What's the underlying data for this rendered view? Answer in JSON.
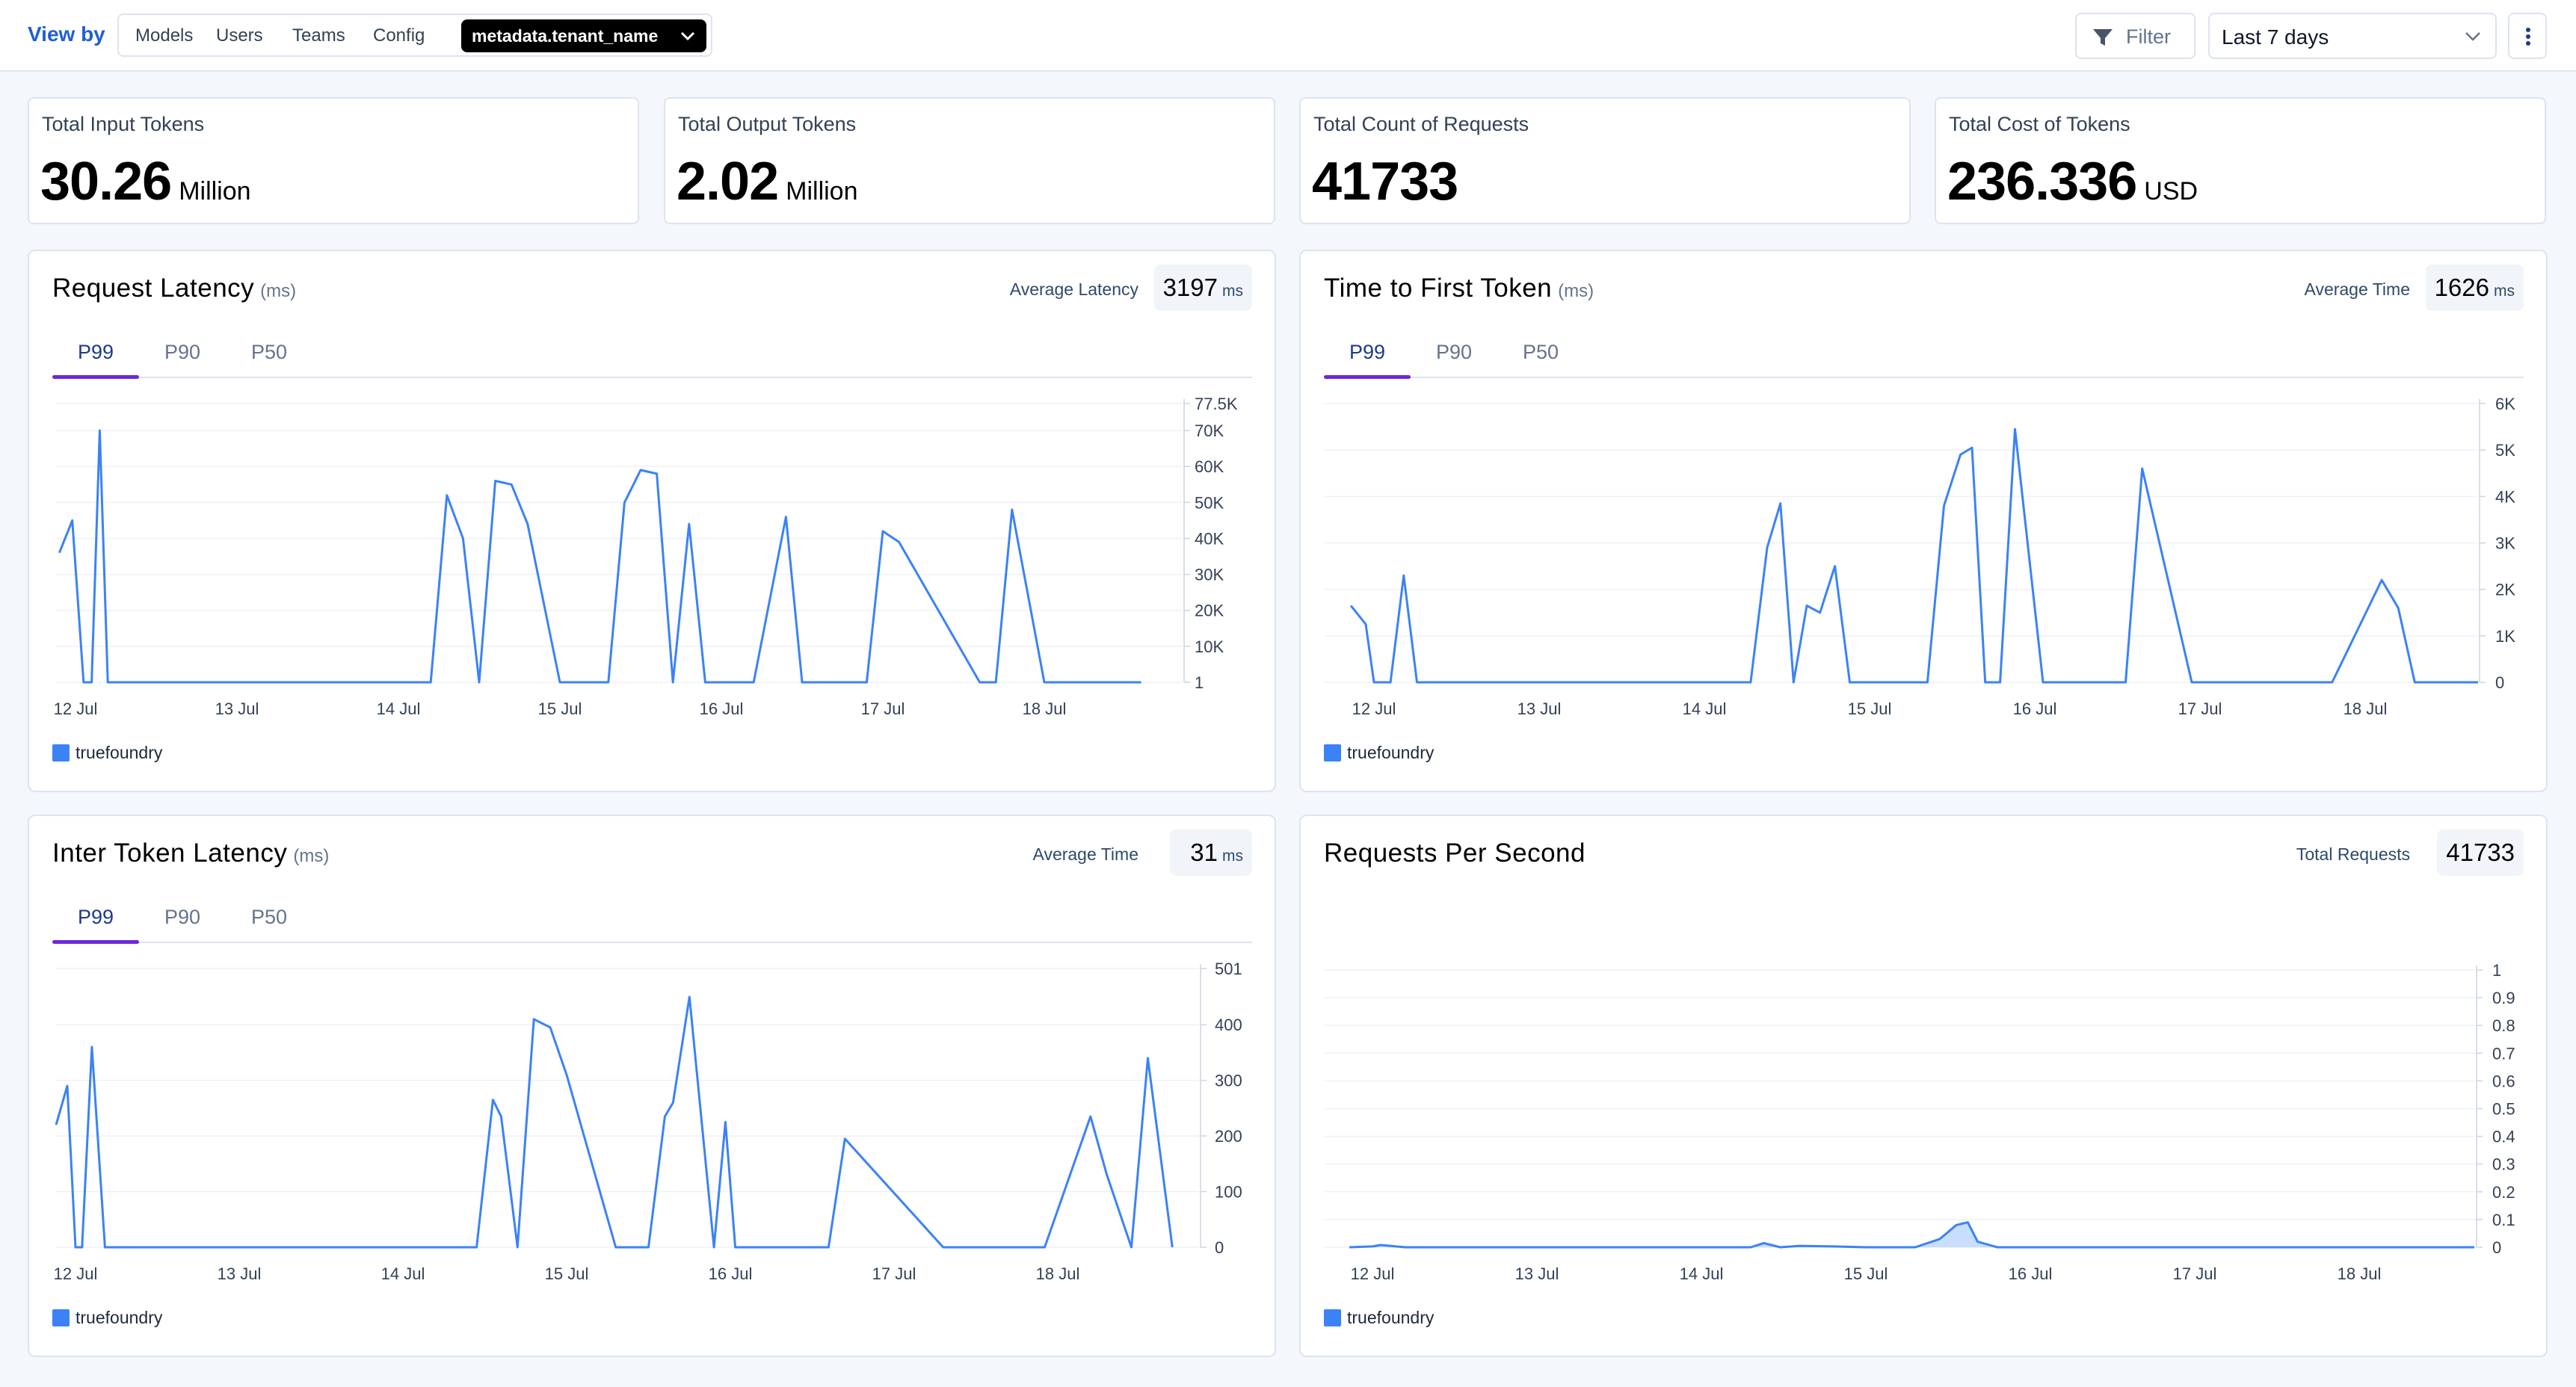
{
  "toolbar": {
    "view_by_label": "View by",
    "segments": [
      "Models",
      "Users",
      "Teams",
      "Config"
    ],
    "active_segment": "metadata.tenant_name",
    "filter_label": "Filter",
    "time_range": "Last 7 days"
  },
  "stats": [
    {
      "title": "Total Input Tokens",
      "value": "30.26",
      "unit": "Million"
    },
    {
      "title": "Total Output Tokens",
      "value": "2.02",
      "unit": "Million"
    },
    {
      "title": "Total Count of Requests",
      "value": "41733",
      "unit": ""
    },
    {
      "title": "Total Cost of Tokens",
      "value": "236.336",
      "unit": "USD"
    }
  ],
  "colors": {
    "series": "#3b82f6",
    "tab_underline": "#6d28d9",
    "accent_text": "#1d5fd6"
  },
  "panels": [
    {
      "title": "Request Latency",
      "unit": "(ms)",
      "summary_label": "Average Latency",
      "summary_value": "3197",
      "summary_unit": "ms",
      "tabs": [
        "P99",
        "P90",
        "P50"
      ],
      "active_tab": "P99",
      "legend": "truefoundry"
    },
    {
      "title": "Time to First Token",
      "unit": "(ms)",
      "summary_label": "Average Time",
      "summary_value": "1626",
      "summary_unit": "ms",
      "tabs": [
        "P99",
        "P90",
        "P50"
      ],
      "active_tab": "P99",
      "legend": "truefoundry"
    },
    {
      "title": "Inter Token Latency",
      "unit": "(ms)",
      "summary_label": "Average Time",
      "summary_value": "31",
      "summary_unit": "ms",
      "tabs": [
        "P99",
        "P90",
        "P50"
      ],
      "active_tab": "P99",
      "legend": "truefoundry"
    },
    {
      "title": "Requests Per Second",
      "unit": "",
      "summary_label": "Total Requests",
      "summary_value": "41733",
      "summary_unit": "",
      "tabs": [],
      "active_tab": "",
      "legend": "truefoundry"
    }
  ],
  "chart_data": [
    {
      "type": "line",
      "series_name": "truefoundry",
      "x_ticks": [
        "12 Jul",
        "13 Jul",
        "14 Jul",
        "15 Jul",
        "16 Jul",
        "17 Jul",
        "18 Jul"
      ],
      "y_ticks": [
        1,
        10000,
        20000,
        30000,
        40000,
        50000,
        60000,
        70000,
        77500
      ],
      "y_tick_labels": [
        "1",
        "10K",
        "20K",
        "30K",
        "40K",
        "50K",
        "60K",
        "70K",
        "77.5K"
      ],
      "ylim": [
        1,
        77500
      ],
      "x": [
        -0.1,
        -0.02,
        0.05,
        0.1,
        0.15,
        0.2,
        0.3,
        0.5,
        1,
        2,
        2.2,
        2.3,
        2.4,
        2.5,
        2.6,
        2.7,
        2.8,
        3,
        3.3,
        3.4,
        3.5,
        3.6,
        3.7,
        3.8,
        3.9,
        4,
        4.2,
        4.4,
        4.5,
        4.9,
        5,
        5.1,
        5.6,
        5.7,
        5.8,
        6,
        6.4,
        6.5,
        6.6
      ],
      "y": [
        36000,
        45000,
        1,
        1,
        70000,
        1,
        1,
        1,
        1,
        1,
        1,
        52000,
        40000,
        1,
        56000,
        55000,
        44000,
        1,
        1,
        50000,
        59000,
        58000,
        1,
        44000,
        1,
        1,
        1,
        46000,
        1,
        1,
        42000,
        39000,
        1,
        1,
        48000,
        1,
        1,
        1,
        1
      ]
    },
    {
      "type": "line",
      "series_name": "truefoundry",
      "x_ticks": [
        "12 Jul",
        "13 Jul",
        "14 Jul",
        "15 Jul",
        "16 Jul",
        "17 Jul",
        "18 Jul"
      ],
      "y_ticks": [
        0,
        1000,
        2000,
        3000,
        4000,
        5000,
        6000
      ],
      "y_tick_labels": [
        "0",
        "1K",
        "2K",
        "3K",
        "4K",
        "5K",
        "6K"
      ],
      "ylim": [
        0,
        6000
      ],
      "x": [
        -0.14,
        -0.05,
        0,
        0.1,
        0.18,
        0.26,
        2.28,
        2.38,
        2.46,
        2.54,
        2.62,
        2.7,
        2.79,
        2.88,
        3.35,
        3.45,
        3.55,
        3.62,
        3.7,
        3.79,
        3.88,
        4.05,
        4.1,
        4.2,
        4.45,
        4.55,
        4.65,
        4.95,
        5.05,
        5.1,
        5.55,
        5.65,
        5.8,
        6.1,
        6.2,
        6.3,
        6.45,
        6.55,
        6.7
      ],
      "y": [
        1650,
        1250,
        0,
        0,
        2300,
        0,
        0,
        2900,
        3850,
        0,
        1650,
        1500,
        2500,
        0,
        0,
        3800,
        4900,
        5050,
        0,
        0,
        5450,
        0,
        0,
        0,
        0,
        0,
        4600,
        0,
        0,
        0,
        0,
        0,
        0,
        2200,
        1600,
        0,
        0,
        0,
        0
      ]
    },
    {
      "type": "line",
      "series_name": "truefoundry",
      "x_ticks": [
        "12 Jul",
        "13 Jul",
        "14 Jul",
        "15 Jul",
        "16 Jul",
        "17 Jul",
        "18 Jul"
      ],
      "y_ticks": [
        0,
        100,
        200,
        300,
        400,
        501
      ],
      "y_tick_labels": [
        "0",
        "100",
        "200",
        "300",
        "400",
        "501"
      ],
      "ylim": [
        0,
        501
      ],
      "x": [
        -0.14,
        -0.05,
        0,
        0.04,
        0.1,
        0.18,
        0.5,
        1.5,
        2.2,
        2.4,
        2.45,
        2.55,
        2.6,
        2.7,
        2.8,
        2.9,
        3,
        3.3,
        3.4,
        3.5,
        3.6,
        3.65,
        3.75,
        3.9,
        3.97,
        4.03,
        4.5,
        4.6,
        4.7,
        5.3,
        5.4,
        5.55,
        5.8,
        5.92,
        6.2,
        6.3,
        6.45,
        6.55,
        6.7
      ],
      "y": [
        220,
        290,
        0,
        0,
        360,
        0,
        0,
        0,
        0,
        0,
        0,
        265,
        235,
        0,
        410,
        395,
        310,
        0,
        0,
        0,
        235,
        260,
        450,
        0,
        225,
        0,
        0,
        0,
        195,
        0,
        0,
        0,
        0,
        0,
        235,
        130,
        0,
        340,
        0
      ]
    },
    {
      "type": "area",
      "series_name": "truefoundry",
      "x_ticks": [
        "12 Jul",
        "13 Jul",
        "14 Jul",
        "15 Jul",
        "16 Jul",
        "17 Jul",
        "18 Jul"
      ],
      "y_ticks": [
        0,
        0.1,
        0.2,
        0.3,
        0.4,
        0.5,
        0.6,
        0.7,
        0.8,
        0.9,
        1
      ],
      "y_tick_labels": [
        "0",
        "0.1",
        "0.2",
        "0.3",
        "0.4",
        "0.5",
        "0.6",
        "0.7",
        "0.8",
        "0.9",
        "1"
      ],
      "ylim": [
        0,
        1
      ],
      "x": [
        -0.14,
        0,
        0.05,
        0.2,
        1,
        2,
        2.3,
        2.38,
        2.48,
        2.6,
        2.8,
        3,
        3.2,
        3.3,
        3.45,
        3.55,
        3.62,
        3.68,
        3.8,
        4,
        5,
        6,
        6.7
      ],
      "y": [
        0,
        0.003,
        0.008,
        0,
        0,
        0,
        0,
        0.015,
        0,
        0.005,
        0.003,
        0,
        0,
        0,
        0.03,
        0.08,
        0.09,
        0.02,
        0,
        0,
        0,
        0,
        0
      ]
    }
  ]
}
